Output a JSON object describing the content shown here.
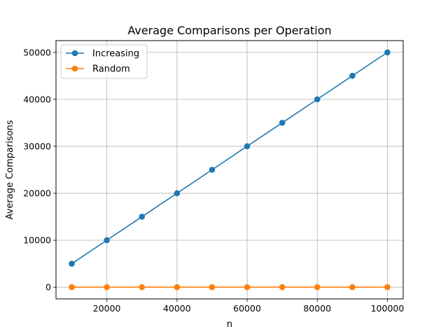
{
  "chart_data": {
    "type": "line",
    "title": "Average Comparisons per Operation",
    "xlabel": "n",
    "ylabel": "Average Comparisons",
    "x": [
      10000,
      20000,
      30000,
      40000,
      50000,
      60000,
      70000,
      80000,
      90000,
      100000
    ],
    "xlim": [
      5500,
      104500
    ],
    "ylim": [
      -2500,
      52500
    ],
    "x_ticks": [
      20000,
      40000,
      60000,
      80000,
      100000
    ],
    "y_ticks": [
      0,
      10000,
      20000,
      30000,
      40000,
      50000
    ],
    "grid": true,
    "legend_position": "upper-left",
    "series": [
      {
        "name": "Increasing",
        "color": "#1f77b4",
        "marker": "circle",
        "values": [
          5000,
          10000,
          15000,
          20000,
          25000,
          30000,
          35000,
          40000,
          45000,
          50000
        ]
      },
      {
        "name": "Random",
        "color": "#ff7f0e",
        "marker": "circle",
        "values": [
          10,
          10,
          10,
          10,
          10,
          10,
          10,
          10,
          10,
          10
        ]
      }
    ]
  }
}
